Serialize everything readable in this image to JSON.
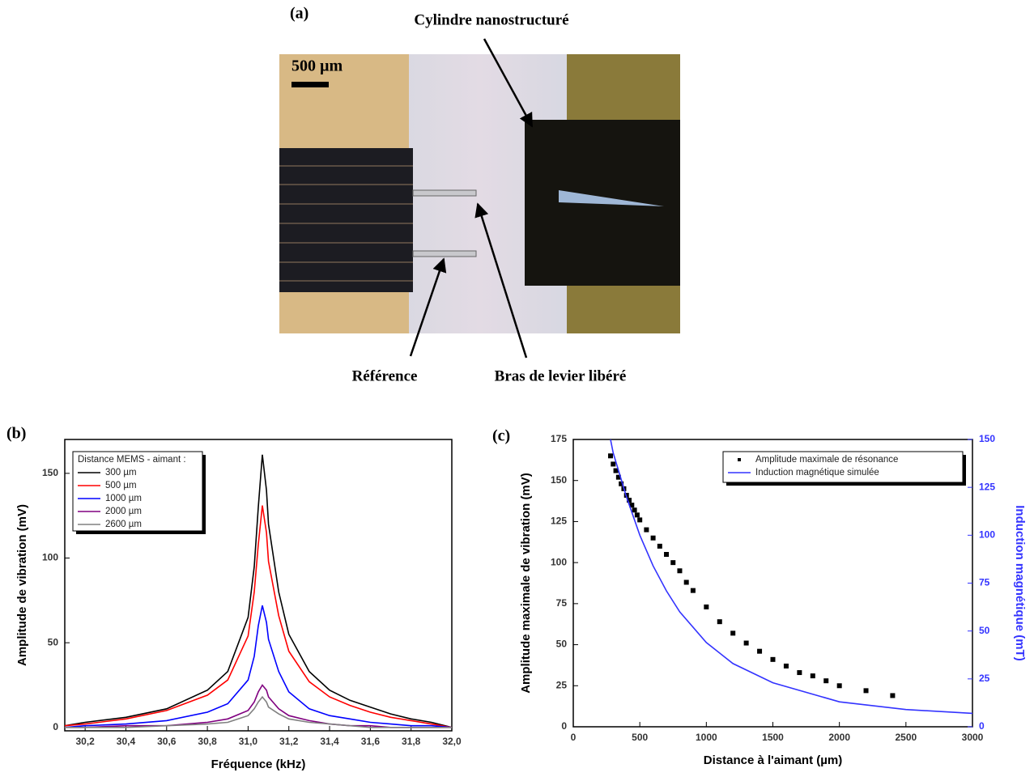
{
  "figure_a": {
    "panel_label": "(a)",
    "cylinder_label": "Cylindre nanostructuré",
    "scale_label": "500 µm",
    "reference_label": "Référence",
    "lever_label": "Bras de levier libéré"
  },
  "chart_data": [
    {
      "type": "line",
      "panel_label": "(b)",
      "x_label": "Fréquence (kHz)",
      "y_label": "Amplitude de vibration (mV)",
      "legend_title": "Distance MEMS - aimant :",
      "x": [
        30.1,
        30.2,
        30.4,
        30.6,
        30.8,
        30.9,
        31.0,
        31.03,
        31.05,
        31.07,
        31.09,
        31.1,
        31.15,
        31.2,
        31.3,
        31.4,
        31.5,
        31.6,
        31.7,
        31.8,
        31.9,
        32.0
      ],
      "series": [
        {
          "name": "300 µm",
          "color": "#000000",
          "values": [
            1,
            3,
            6,
            11,
            22,
            33,
            65,
            95,
            130,
            161,
            140,
            120,
            80,
            55,
            33,
            22,
            16,
            12,
            8,
            5,
            3,
            0
          ]
        },
        {
          "name": "500 µm",
          "color": "#ff0000",
          "values": [
            1,
            2,
            5,
            10,
            19,
            28,
            54,
            80,
            108,
            131,
            115,
            98,
            66,
            45,
            27,
            18,
            13,
            9,
            6,
            4,
            2,
            0
          ]
        },
        {
          "name": "1000 µm",
          "color": "#0000ff",
          "values": [
            0,
            1,
            2,
            4,
            9,
            14,
            28,
            42,
            60,
            72,
            62,
            52,
            33,
            21,
            11,
            7,
            5,
            3,
            2,
            1,
            1,
            0
          ]
        },
        {
          "name": "2000 µm",
          "color": "#800080",
          "values": [
            0,
            0,
            1,
            1,
            3,
            5,
            10,
            15,
            21,
            25,
            22,
            18,
            11,
            7,
            4,
            2,
            1,
            1,
            0,
            0,
            0,
            0
          ]
        },
        {
          "name": "2600 µm",
          "color": "#808080",
          "values": [
            0,
            0,
            0,
            1,
            2,
            3,
            7,
            11,
            15,
            18,
            15,
            12,
            8,
            5,
            3,
            2,
            1,
            0,
            0,
            0,
            0,
            0
          ]
        }
      ],
      "xlim": [
        30.1,
        32.0
      ],
      "xticks": [
        {
          "value": 30.2,
          "label": "30,2"
        },
        {
          "value": 30.4,
          "label": "30,4"
        },
        {
          "value": 30.6,
          "label": "30,6"
        },
        {
          "value": 30.8,
          "label": "30,8"
        },
        {
          "value": 31.0,
          "label": "31,0"
        },
        {
          "value": 31.2,
          "label": "31,2"
        },
        {
          "value": 31.4,
          "label": "31,4"
        },
        {
          "value": 31.6,
          "label": "31,6"
        },
        {
          "value": 31.8,
          "label": "31,8"
        },
        {
          "value": 32.0,
          "label": "32,0"
        }
      ],
      "ylim": [
        -2,
        170
      ],
      "yticks": [
        0,
        50,
        100,
        150
      ],
      "legend": "upper-left"
    },
    {
      "type": "scatter",
      "panel_label": "(c)",
      "x_label": "Distance à l'aimant (µm)",
      "y_label": "Amplitude maximale de vibration (mV)",
      "y2_label": "Induction magnétique (mT)",
      "series": [
        {
          "name": "Amplitude maximale de résonance",
          "color": "#000000",
          "type": "scatter",
          "x": [
            280,
            300,
            320,
            340,
            360,
            380,
            400,
            420,
            440,
            460,
            480,
            500,
            550,
            600,
            650,
            700,
            750,
            800,
            850,
            900,
            1000,
            1100,
            1200,
            1300,
            1400,
            1500,
            1600,
            1700,
            1800,
            1900,
            2000,
            2200,
            2400
          ],
          "values": [
            165,
            160,
            156,
            152,
            148,
            145,
            141,
            138,
            135,
            132,
            129,
            126,
            120,
            115,
            110,
            105,
            100,
            95,
            88,
            83,
            73,
            64,
            57,
            51,
            46,
            41,
            37,
            33,
            31,
            28,
            25,
            22,
            19
          ]
        },
        {
          "name": "Induction magnétique simulée",
          "color": "#3333ff",
          "type": "line",
          "axis": "y2",
          "x": [
            280,
            300,
            400,
            500,
            600,
            700,
            800,
            1000,
            1200,
            1500,
            2000,
            2500,
            3000
          ],
          "values": [
            150,
            143,
            120,
            100,
            84,
            71,
            60,
            44,
            33,
            23,
            13,
            9,
            7
          ]
        }
      ],
      "xlim": [
        0,
        3000
      ],
      "xticks": [
        0,
        500,
        1000,
        1500,
        2000,
        2500,
        3000
      ],
      "ylim": [
        0,
        175
      ],
      "yticks": [
        0,
        25,
        50,
        75,
        100,
        125,
        150,
        175
      ],
      "y2lim": [
        0,
        150
      ],
      "y2ticks": [
        0,
        25,
        50,
        75,
        100,
        125,
        150
      ],
      "y2_color": "#3333ff",
      "legend": "upper-right"
    }
  ]
}
